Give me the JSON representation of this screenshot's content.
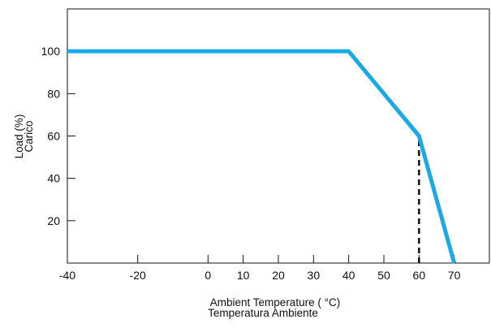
{
  "chart_data": {
    "type": "line",
    "title": "",
    "xlabel": [
      "Ambient Temperature ( °C)",
      "Temperatura Ambiente"
    ],
    "ylabel": [
      "Load (%)",
      "Carico"
    ],
    "xlim": [
      -40,
      80
    ],
    "ylim": [
      0,
      120
    ],
    "x_ticks": [
      -40,
      -20,
      0,
      10,
      20,
      30,
      40,
      50,
      60,
      70
    ],
    "y_ticks": [
      20,
      40,
      60,
      80,
      100
    ],
    "grid": false,
    "series": [
      {
        "points": [
          {
            "x": -40,
            "y": 100
          },
          {
            "x": 40,
            "y": 100
          },
          {
            "x": 60,
            "y": 60
          },
          {
            "x": 70,
            "y": 0
          }
        ],
        "color": "#1aa9e6"
      }
    ],
    "annotations": [
      {
        "type": "dashed-vertical",
        "x": 60,
        "y_from": 0,
        "y_to": 60,
        "color": "#111111"
      }
    ]
  }
}
